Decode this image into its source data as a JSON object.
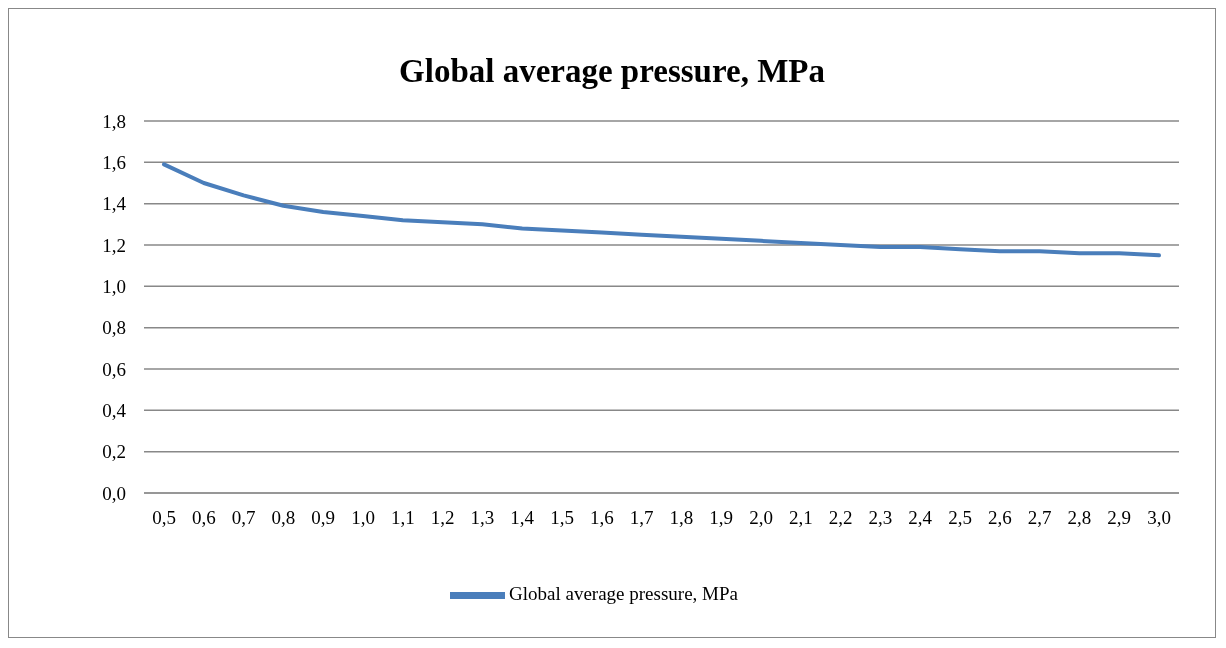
{
  "chart_data": {
    "type": "line",
    "title": "Global average pressure, MPa",
    "categories": [
      "0,5",
      "0,6",
      "0,7",
      "0,8",
      "0,9",
      "1,0",
      "1,1",
      "1,2",
      "1,3",
      "1,4",
      "1,5",
      "1,6",
      "1,7",
      "1,8",
      "1,9",
      "2,0",
      "2,1",
      "2,2",
      "2,3",
      "2,4",
      "2,5",
      "2,6",
      "2,7",
      "2,8",
      "2,9",
      "3,0"
    ],
    "series": [
      {
        "name": "Global average pressure, MPa",
        "color": "#4a7ebb",
        "values": [
          1.59,
          1.5,
          1.44,
          1.39,
          1.36,
          1.34,
          1.32,
          1.31,
          1.3,
          1.28,
          1.27,
          1.26,
          1.25,
          1.24,
          1.23,
          1.22,
          1.21,
          1.2,
          1.19,
          1.19,
          1.18,
          1.17,
          1.17,
          1.16,
          1.16,
          1.15
        ]
      }
    ],
    "ylim": [
      0,
      1.8
    ],
    "yticks": [
      {
        "value": 0,
        "label": "0,0"
      },
      {
        "value": 0.2,
        "label": "0,2"
      },
      {
        "value": 0.4,
        "label": "0,4"
      },
      {
        "value": 0.6,
        "label": "0,6"
      },
      {
        "value": 0.8,
        "label": "0,8"
      },
      {
        "value": 1.0,
        "label": "1,0"
      },
      {
        "value": 1.2,
        "label": "1,2"
      },
      {
        "value": 1.4,
        "label": "1,4"
      },
      {
        "value": 1.6,
        "label": "1,6"
      },
      {
        "value": 1.8,
        "label": "1,8"
      }
    ],
    "grid": "y",
    "legend": "bottom",
    "marker": "none",
    "line_style": "solid"
  }
}
